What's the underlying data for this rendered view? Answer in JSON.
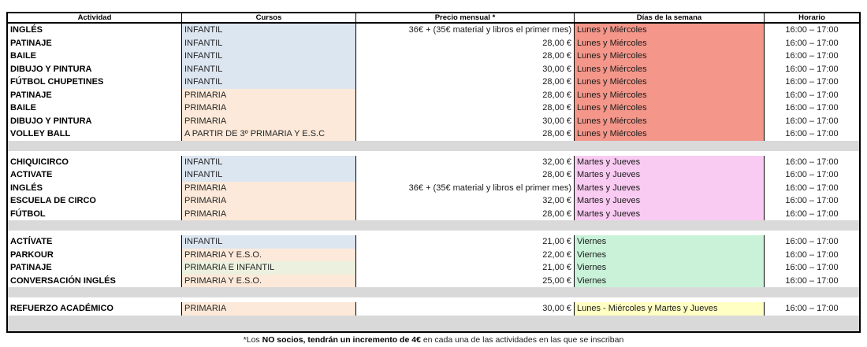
{
  "table": {
    "headers": [
      "Actividad",
      "Cursos",
      "Precio mensual *",
      "Días de la semana",
      "Horario"
    ],
    "colors": {
      "infantil_bg": "#DCE6F1",
      "primaria_bg": "#FDE9D9",
      "primaria_infantil_bg": "#EBF1DE",
      "lunes_miercoles_bg": "#F4978A",
      "martes_jueves_bg": "#FACBF2",
      "viernes_bg": "#C9F2D9",
      "refuerzo_days_bg": "#FFFFC4",
      "separator_bg": "#D9D9D9"
    },
    "blocks": [
      {
        "days_color": "lunes_miercoles_bg",
        "separator_after": true,
        "rows": [
          {
            "activity": "INGLÉS",
            "curso": "INFANTIL",
            "curso_color": "infantil_bg",
            "price": "36€ + (35€ material y libros el primer mes)",
            "days": "Lunes y Miércoles",
            "time": "16:00 – 17:00"
          },
          {
            "activity": "PATINAJE",
            "curso": "INFANTIL",
            "curso_color": "infantil_bg",
            "price": "28,00 €",
            "days": "Lunes y Miércoles",
            "time": "16:00 – 17:00"
          },
          {
            "activity": "BAILE",
            "curso": "INFANTIL",
            "curso_color": "infantil_bg",
            "price": "28,00 €",
            "days": "Lunes y Miércoles",
            "time": "16:00 – 17:00"
          },
          {
            "activity": "DIBUJO Y PINTURA",
            "curso": "INFANTIL",
            "curso_color": "infantil_bg",
            "price": "30,00 €",
            "days": "Lunes y Miércoles",
            "time": "16:00 – 17:00"
          },
          {
            "activity": "FÚTBOL CHUPETINES",
            "curso": "INFANTIL",
            "curso_color": "infantil_bg",
            "price": "28,00 €",
            "days": "Lunes y Miércoles",
            "time": "16:00 – 17:00"
          },
          {
            "activity": "PATINAJE",
            "curso": "PRIMARIA",
            "curso_color": "primaria_bg",
            "price": "28,00 €",
            "days": "Lunes y Miércoles",
            "time": "16:00 – 17:00"
          },
          {
            "activity": "BAILE",
            "curso": "PRIMARIA",
            "curso_color": "primaria_bg",
            "price": "28,00 €",
            "days": "Lunes y Miércoles",
            "time": "16:00 – 17:00"
          },
          {
            "activity": "DIBUJO Y PINTURA",
            "curso": "PRIMARIA",
            "curso_color": "primaria_bg",
            "price": "30,00 €",
            "days": "Lunes y Miércoles",
            "time": "16:00 – 17:00"
          },
          {
            "activity": "VOLLEY BALL",
            "curso": "A PARTIR DE 3º PRIMARIA Y E.S.C",
            "curso_color": "primaria_bg",
            "price": "28,00 €",
            "days": "Lunes y Miércoles",
            "time": "16:00 – 17:00"
          }
        ]
      },
      {
        "days_color": "martes_jueves_bg",
        "separator_after": true,
        "rows": [
          {
            "activity": "CHIQUICIRCO",
            "curso": "INFANTIL",
            "curso_color": "infantil_bg",
            "price": "32,00 €",
            "days": "Martes y Jueves",
            "time": "16:00 – 17:00"
          },
          {
            "activity": "ACTIVATE",
            "curso": "INFANTIL",
            "curso_color": "infantil_bg",
            "price": "28,00 €",
            "days": "Martes y Jueves",
            "time": "16:00 – 17:00"
          },
          {
            "activity": "INGLÉS",
            "curso": "PRIMARIA",
            "curso_color": "primaria_bg",
            "price": "36€ + (35€ material y libros el primer mes)",
            "days": "Martes y Jueves",
            "time": "16:00 – 17:00"
          },
          {
            "activity": "ESCUELA DE CIRCO",
            "curso": "PRIMARIA",
            "curso_color": "primaria_bg",
            "price": "32,00 €",
            "days": "Martes y Jueves",
            "time": "16:00 – 17:00"
          },
          {
            "activity": "FÚTBOL",
            "curso": "PRIMARIA",
            "curso_color": "primaria_bg",
            "price": "28,00 €",
            "days": "Martes y Jueves",
            "time": "16:00 – 17:00"
          }
        ]
      },
      {
        "days_color": "viernes_bg",
        "separator_after": true,
        "rows": [
          {
            "activity": "ACTÍVATE",
            "curso": "INFANTIL",
            "curso_color": "infantil_bg",
            "price": "21,00 €",
            "days": "Viernes",
            "time": "16:00 – 17:00"
          },
          {
            "activity": "PARKOUR",
            "curso": "PRIMARIA Y E.S.O.",
            "curso_color": "primaria_bg",
            "price": "22,00 €",
            "days": "Viernes",
            "time": "16:00 – 17:00"
          },
          {
            "activity": "PATINAJE",
            "curso": "PRIMARIA E INFANTIL",
            "curso_color": "primaria_infantil_bg",
            "price": "21,00 €",
            "days": "Viernes",
            "time": "16:00 – 17:00"
          },
          {
            "activity": "CONVERSACIÓN INGLÉS",
            "curso": "PRIMARIA Y E.S.O.",
            "curso_color": "primaria_bg",
            "price": "25,00 €",
            "days": "Viernes",
            "time": "16:00 – 17:00"
          }
        ]
      },
      {
        "days_color": "refuerzo_days_bg",
        "separator_after": false,
        "rows": [
          {
            "activity": "REFUERZO ACADÉMICO",
            "curso": "PRIMARIA",
            "curso_color": "primaria_bg",
            "price": "30,00 €",
            "days": "Lunes - Miércoles y Martes y Jueves",
            "time": "16:00 – 17:00"
          }
        ]
      }
    ]
  },
  "footnote": {
    "prefix": "*Los ",
    "bold": "NO socios, tendrán un incremento de 4€",
    "suffix": " en cada una de las actividades en las que se inscriban"
  }
}
